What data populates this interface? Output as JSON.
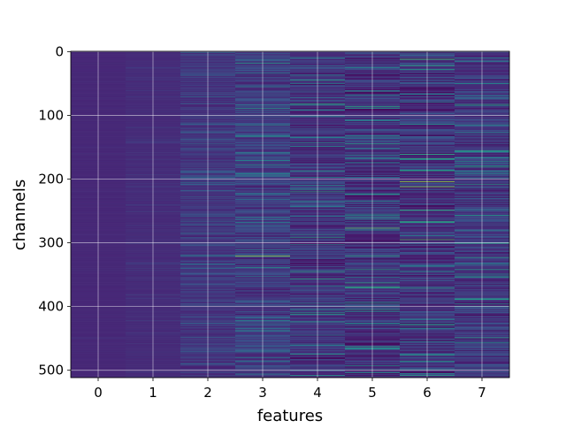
{
  "chart_data": {
    "type": "heatmap",
    "title": "",
    "xlabel": "features",
    "ylabel": "channels",
    "x_categories": [
      "0",
      "1",
      "2",
      "3",
      "4",
      "5",
      "6",
      "7"
    ],
    "y_ticks": [
      0,
      100,
      200,
      300,
      400,
      500
    ],
    "y_range": [
      0,
      511
    ],
    "n_rows": 512,
    "y_inverted": true,
    "grid": true,
    "colormap": "viridis",
    "column_variation": [
      0.02,
      0.05,
      0.22,
      0.4,
      0.5,
      0.55,
      0.62,
      0.48
    ],
    "column_base": [
      0.14,
      0.15,
      0.17,
      0.19,
      0.16,
      0.15,
      0.16,
      0.17
    ],
    "bright_rows": [
      {
        "feature": 6,
        "channel": 204,
        "value": 0.85
      },
      {
        "feature": 6,
        "channel": 212,
        "value": 0.82
      },
      {
        "feature": 6,
        "channel": 12,
        "value": 0.7
      },
      {
        "feature": 6,
        "channel": 28,
        "value": 0.55
      },
      {
        "feature": 6,
        "channel": 268,
        "value": 0.55
      },
      {
        "feature": 6,
        "channel": 345,
        "value": 0.5
      },
      {
        "feature": 6,
        "channel": 186,
        "value": 0.5
      },
      {
        "feature": 5,
        "channel": 277,
        "value": 0.75
      },
      {
        "feature": 5,
        "channel": 260,
        "value": 0.55
      },
      {
        "feature": 5,
        "channel": 405,
        "value": 0.6
      },
      {
        "feature": 5,
        "channel": 493,
        "value": 0.5
      },
      {
        "feature": 3,
        "channel": 321,
        "value": 0.85
      },
      {
        "feature": 3,
        "channel": 18,
        "value": 0.55
      },
      {
        "feature": 3,
        "channel": 260,
        "value": 0.45
      },
      {
        "feature": 4,
        "channel": 220,
        "value": 0.6
      },
      {
        "feature": 4,
        "channel": 475,
        "value": 0.55
      },
      {
        "feature": 4,
        "channel": 143,
        "value": 0.5
      },
      {
        "feature": 4,
        "channel": 50,
        "value": 0.45
      },
      {
        "feature": 7,
        "channel": 83,
        "value": 0.6
      },
      {
        "feature": 7,
        "channel": 50,
        "value": 0.5
      },
      {
        "feature": 7,
        "channel": 333,
        "value": 0.5
      },
      {
        "feature": 7,
        "channel": 400,
        "value": 0.45
      },
      {
        "feature": 2,
        "channel": 320,
        "value": 0.45
      },
      {
        "feature": 2,
        "channel": 205,
        "value": 0.4
      }
    ]
  }
}
